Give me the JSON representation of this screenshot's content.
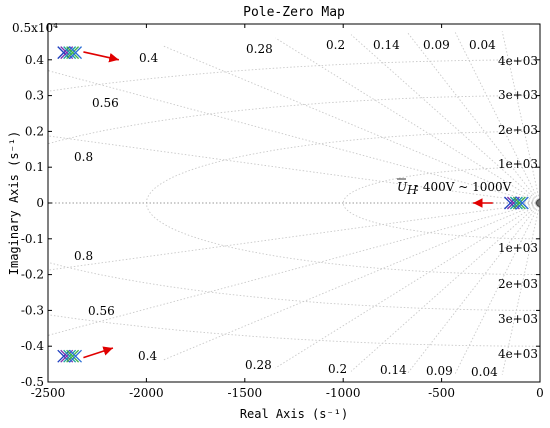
{
  "chart_data": {
    "type": "scatter",
    "title": "Pole-Zero Map",
    "xlabel": "Real Axis (s⁻¹)",
    "ylabel": "Imaginary Axis (s⁻¹)",
    "xlim": [
      -2500,
      0
    ],
    "ylim": [
      -5000,
      5000
    ],
    "y_exponent_label": "0.5x10⁴",
    "x_ticks": [
      -2500,
      -2000,
      -1500,
      -1000,
      -500,
      0
    ],
    "x_tick_labels": [
      "-2500",
      "-2000",
      "-1500",
      "-1000",
      "-500",
      "0"
    ],
    "y_ticks": [
      4000,
      3000,
      2000,
      1000,
      0,
      -1000,
      -2000,
      -3000,
      -4000,
      -5000
    ],
    "y_tick_labels": [
      "0.4",
      "0.3",
      "0.2",
      "0.1",
      "0",
      "-0.1",
      "-0.2",
      "-0.3",
      "-0.4",
      "-0.5"
    ],
    "damping_labels_top": [
      "0.4",
      "0.28",
      "0.2",
      "0.14",
      "0.09",
      "0.04",
      "0.56",
      "0.8"
    ],
    "damping_labels_bottom": [
      "0.8",
      "0.56",
      "0.4",
      "0.28",
      "0.2",
      "0.14",
      "0.09",
      "0.04"
    ],
    "frequency_labels_top": [
      "4e+03",
      "3e+03",
      "2e+03",
      "1e+03"
    ],
    "frequency_labels_bottom": [
      "1e+03",
      "2e+03",
      "3e+03",
      "4e+03"
    ],
    "damping_values": [
      0.04,
      0.09,
      0.14,
      0.2,
      0.28,
      0.4,
      0.56,
      0.8
    ],
    "frequency_values": [
      1000,
      2000,
      3000,
      4000
    ],
    "annotation": {
      "symbol": "U",
      "subscript": "H",
      "text": ": 400V ~ 1000V"
    },
    "series": [
      {
        "color": "#1f3fbf",
        "points": [
          [
            -2420,
            4200
          ],
          [
            -2420,
            -4280
          ],
          [
            -150,
            0
          ]
        ]
      },
      {
        "color": "#7a2fb0",
        "points": [
          [
            -2405,
            4200
          ],
          [
            -2405,
            -4280
          ],
          [
            -135,
            0
          ]
        ]
      },
      {
        "color": "#1aa0a0",
        "points": [
          [
            -2390,
            4200
          ],
          [
            -2390,
            -4280
          ],
          [
            -120,
            0
          ]
        ]
      },
      {
        "color": "#3fb24a",
        "points": [
          [
            -2375,
            4200
          ],
          [
            -2375,
            -4280
          ],
          [
            -105,
            0
          ]
        ]
      },
      {
        "color": "#2b6fd6",
        "points": [
          [
            -2360,
            4200
          ],
          [
            -2360,
            -4280
          ],
          [
            -90,
            0
          ]
        ]
      }
    ],
    "zero": [
      0,
      0
    ],
    "arrows": [
      {
        "from": [
          -2320,
          4220
        ],
        "to": [
          -2140,
          4000
        ]
      },
      {
        "from": [
          -2320,
          -4320
        ],
        "to": [
          -2170,
          -4050
        ]
      },
      {
        "from": [
          -240,
          0
        ],
        "to": [
          -340,
          0
        ]
      }
    ],
    "grid": true
  }
}
